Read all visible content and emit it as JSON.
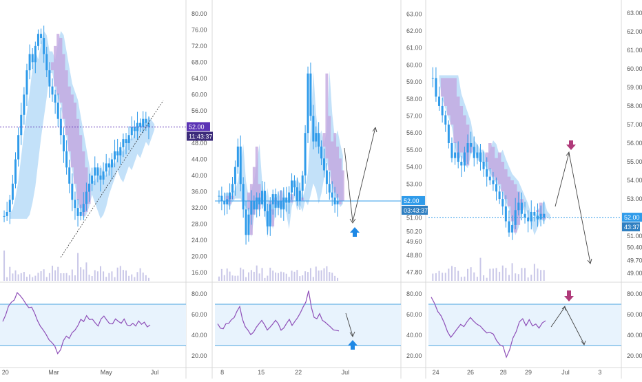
{
  "colors": {
    "candle": "#2f9bea",
    "cloud_blue": "#a9d4f7",
    "cloud_purple": "#c3a8e0",
    "rsi_line": "#8e4fb8",
    "rsi_band_fill": "#e8f3fd",
    "rsi_band_line": "#4aa3df",
    "volume": "#c9c7e8",
    "price_line": "#2f9bea",
    "price_line_purple": "#5b33b5",
    "arrow_blue": "#1e88e5",
    "arrow_magenta": "#b03a7a",
    "axis_text": "#555555",
    "divider": "#d8d8d8"
  },
  "chart_data": [
    {
      "type": "candlestick",
      "title": "",
      "y_ticks": [
        "80.00",
        "76.00",
        "72.00",
        "68.00",
        "64.00",
        "60.00",
        "56.00",
        "52.00",
        "48.00",
        "44.00",
        "40.00",
        "36.00",
        "32.00",
        "28.00",
        "24.00",
        "20.00",
        "16.00"
      ],
      "ylim": [
        14,
        82
      ],
      "x_ticks": [
        "20",
        "Mar",
        "May",
        "Jul"
      ],
      "price_label": "52.00",
      "timer_label": "11:43:37",
      "price_level": 52,
      "rsi_ticks": [
        "80.00",
        "60.00",
        "40.00",
        "20.00"
      ],
      "rsi_ylim": [
        10,
        90
      ],
      "rsi_band": [
        30,
        70
      ],
      "close": [
        30,
        31,
        34,
        38,
        44,
        50,
        55,
        60,
        66,
        70,
        68,
        72,
        75,
        74,
        70,
        66,
        62,
        60,
        58,
        54,
        50,
        46,
        42,
        38,
        34,
        32,
        30,
        31,
        33,
        36,
        38,
        40,
        42,
        40,
        39,
        41,
        43,
        42,
        44,
        46,
        45,
        47,
        49,
        48,
        50,
        52,
        51,
        53,
        52,
        54,
        53,
        52
      ],
      "rsi": [
        52,
        60,
        68,
        72,
        75,
        80,
        78,
        74,
        70,
        68,
        66,
        62,
        55,
        50,
        45,
        40,
        35,
        32,
        30,
        22,
        25,
        35,
        40,
        38,
        42,
        46,
        50,
        55,
        52,
        58,
        54,
        56,
        52,
        50,
        55,
        58,
        54,
        50,
        52,
        56,
        54,
        52,
        55,
        50,
        48,
        52,
        50,
        54,
        50,
        52,
        48,
        50
      ]
    },
    {
      "type": "candlestick",
      "title": "",
      "y_ticks": [
        "63.00",
        "62.00",
        "61.00",
        "60.00",
        "59.00",
        "58.00",
        "57.00",
        "56.00",
        "55.00",
        "54.00",
        "53.00",
        "52.00",
        "51.00",
        "50.20",
        "49.60",
        "48.80",
        "47.80"
      ],
      "ylim": [
        47.3,
        63.5
      ],
      "x_ticks": [
        "8",
        "15",
        "22",
        "Jul"
      ],
      "price_label": "52.00",
      "timer_label": "03:43:37",
      "price_level": 52,
      "rsi_ticks": [
        "80.00",
        "60.00",
        "40.00",
        "20.00"
      ],
      "rsi_ylim": [
        10,
        90
      ],
      "rsi_band": [
        30,
        70
      ],
      "close": [
        52.3,
        52.0,
        51.8,
        52.1,
        52.5,
        53.0,
        54.0,
        55.2,
        53.0,
        51.5,
        50.0,
        51.2,
        52.0,
        51.5,
        52.2,
        51.8,
        52.6,
        51.4,
        50.5,
        51.8,
        52.4,
        51.6,
        52.0,
        51.5,
        52.2,
        51.9,
        52.5,
        53.2,
        52.8,
        52.0,
        52.6,
        53.5,
        56.0,
        59.5,
        57.0,
        55.5,
        56.0,
        55.2,
        54.5,
        53.8,
        53.0,
        52.5,
        52.2,
        51.8,
        52.0
      ],
      "rsi": [
        50,
        48,
        46,
        50,
        52,
        55,
        58,
        62,
        68,
        56,
        48,
        44,
        40,
        42,
        48,
        52,
        55,
        50,
        46,
        48,
        52,
        55,
        50,
        45,
        48,
        52,
        56,
        50,
        54,
        58,
        62,
        68,
        72,
        82,
        66,
        58,
        56,
        60,
        54,
        52,
        50,
        48,
        46,
        44,
        45
      ]
    },
    {
      "type": "candlestick",
      "title": "",
      "y_ticks": [
        "63.00",
        "62.00",
        "61.00",
        "60.00",
        "59.00",
        "58.00",
        "57.00",
        "56.00",
        "55.00",
        "54.00",
        "53.00",
        "52.00",
        "51.00",
        "50.40",
        "49.70",
        "49.00"
      ],
      "ylim": [
        48.6,
        63.4
      ],
      "x_ticks": [
        "24",
        "26",
        "28",
        "29",
        "Jul",
        "3"
      ],
      "price_label": "52.00",
      "timer_label": "43:37",
      "price_level": 52,
      "rsi_ticks": [
        "80.00",
        "60.00",
        "40.00",
        "20.00"
      ],
      "rsi_ylim": [
        10,
        90
      ],
      "rsi_band": [
        30,
        70
      ],
      "close": [
        59.5,
        58.5,
        58.0,
        57.5,
        57.0,
        56.0,
        55.2,
        55.5,
        55.0,
        54.8,
        55.5,
        56.0,
        55.8,
        55.2,
        55.5,
        55.0,
        54.6,
        54.2,
        54.0,
        53.8,
        53.4,
        53.0,
        52.6,
        51.8,
        51.2,
        51.6,
        52.4,
        52.8,
        52.2,
        52.0,
        51.8,
        52.3,
        52.1,
        51.9,
        52.2,
        52.0
      ],
      "rsi": [
        78,
        70,
        64,
        58,
        52,
        44,
        38,
        42,
        46,
        50,
        48,
        52,
        56,
        54,
        50,
        48,
        46,
        42,
        44,
        40,
        36,
        32,
        28,
        18,
        26,
        36,
        44,
        52,
        56,
        50,
        54,
        50,
        52,
        48,
        52,
        54
      ]
    }
  ]
}
